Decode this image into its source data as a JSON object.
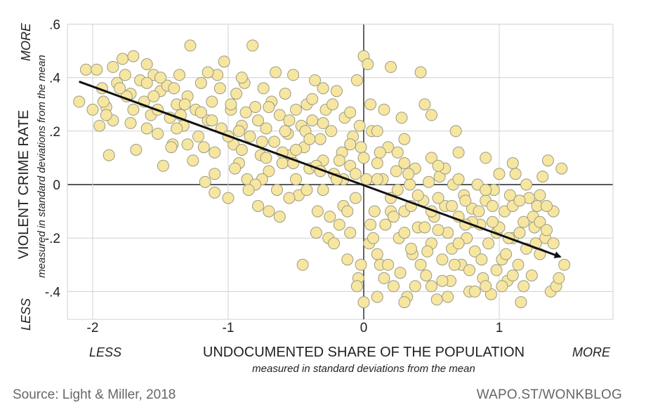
{
  "chart_data": {
    "type": "scatter",
    "x_axis": {
      "title": "UNDOCUMENTED SHARE OF THE POPULATION",
      "subtitle": "measured in standard deviations from the mean",
      "less_label": "LESS",
      "more_label": "MORE",
      "range": [
        -2.2,
        1.8
      ],
      "ticks": [
        {
          "value": -2,
          "label": "-2"
        },
        {
          "value": -1,
          "label": "-1"
        },
        {
          "value": 0,
          "label": "0"
        },
        {
          "value": 1,
          "label": "1"
        }
      ]
    },
    "y_axis": {
      "title": "VIOLENT CRIME RATE",
      "subtitle": "measured in standard deviations from the mean",
      "less_label": "LESS",
      "more_label": "MORE",
      "range": [
        -0.5,
        0.6
      ],
      "ticks": [
        {
          "value": 0.6,
          "label": ".6"
        },
        {
          "value": 0.4,
          "label": ".4"
        },
        {
          "value": 0.2,
          "label": ".2"
        },
        {
          "value": 0,
          "label": "0"
        },
        {
          "value": -0.2,
          "label": "-.2"
        },
        {
          "value": -0.4,
          "label": "-.4"
        }
      ]
    },
    "trend_line": {
      "x": [
        -2.1,
        1.45
      ],
      "y": [
        0.385,
        -0.27
      ]
    },
    "grid": true,
    "points": [
      [
        -2.1,
        0.31
      ],
      [
        -2.05,
        0.43
      ],
      [
        -1.97,
        0.43
      ],
      [
        -1.93,
        0.36
      ],
      [
        -1.9,
        0.29
      ],
      [
        -1.88,
        0.11
      ],
      [
        -1.95,
        0.22
      ],
      [
        -1.85,
        0.24
      ],
      [
        -1.82,
        0.38
      ],
      [
        -1.78,
        0.47
      ],
      [
        -1.76,
        0.41
      ],
      [
        -1.72,
        0.34
      ],
      [
        -1.7,
        0.28
      ],
      [
        -1.68,
        0.13
      ],
      [
        -1.65,
        0.39
      ],
      [
        -1.62,
        0.31
      ],
      [
        -1.6,
        0.45
      ],
      [
        -1.57,
        0.26
      ],
      [
        -1.55,
        0.41
      ],
      [
        -1.52,
        0.19
      ],
      [
        -1.5,
        0.35
      ],
      [
        -1.48,
        0.07
      ],
      [
        -1.45,
        0.37
      ],
      [
        -1.43,
        0.25
      ],
      [
        -1.41,
        0.15
      ],
      [
        -1.38,
        0.3
      ],
      [
        -1.36,
        0.41
      ],
      [
        -1.33,
        0.22
      ],
      [
        -1.3,
        0.33
      ],
      [
        -1.28,
        0.52
      ],
      [
        -1.26,
        0.09
      ],
      [
        -1.24,
        0.28
      ],
      [
        -1.22,
        0.18
      ],
      [
        -1.2,
        0.38
      ],
      [
        -1.17,
        0.01
      ],
      [
        -1.15,
        0.24
      ],
      [
        -1.12,
        0.31
      ],
      [
        -1.1,
        0.12
      ],
      [
        -1.08,
        0.41
      ],
      [
        -1.05,
        0.21
      ],
      [
        -1.03,
        0.46
      ],
      [
        -1.0,
        -0.05
      ],
      [
        -0.98,
        0.28
      ],
      [
        -0.96,
        0.15
      ],
      [
        -0.94,
        0.34
      ],
      [
        -0.92,
        0.08
      ],
      [
        -0.9,
        0.22
      ],
      [
        -0.88,
        0.38
      ],
      [
        -0.86,
        0.02
      ],
      [
        -0.84,
        0.18
      ],
      [
        -0.82,
        0.52
      ],
      [
        -0.8,
        0.29
      ],
      [
        -0.78,
        -0.08
      ],
      [
        -0.76,
        0.11
      ],
      [
        -0.74,
        0.36
      ],
      [
        -0.72,
        0.21
      ],
      [
        -0.7,
        0.05
      ],
      [
        -0.68,
        0.31
      ],
      [
        -0.66,
        0.16
      ],
      [
        -0.64,
        -0.02
      ],
      [
        -0.62,
        0.26
      ],
      [
        -0.6,
        0.08
      ],
      [
        -0.58,
        0.34
      ],
      [
        -0.56,
        0.19
      ],
      [
        -0.54,
        0.11
      ],
      [
        -0.52,
        0.41
      ],
      [
        -0.5,
        0.28
      ],
      [
        -0.48,
        -0.04
      ],
      [
        -0.46,
        0.22
      ],
      [
        -0.44,
        0.14
      ],
      [
        -0.42,
        0.3
      ],
      [
        -0.4,
        0.06
      ],
      [
        -0.38,
        0.24
      ],
      [
        -0.36,
        0.39
      ],
      [
        -0.34,
        -0.1
      ],
      [
        -0.32,
        0.17
      ],
      [
        -0.3,
        0.09
      ],
      [
        -0.28,
        0.28
      ],
      [
        -0.26,
        -0.2
      ],
      [
        -0.24,
        0.2
      ],
      [
        -0.22,
        0.04
      ],
      [
        -0.2,
        0.35
      ],
      [
        -0.18,
        -0.15
      ],
      [
        -0.16,
        0.12
      ],
      [
        -0.14,
        0.25
      ],
      [
        -0.12,
        -0.28
      ],
      [
        -0.1,
        0.07
      ],
      [
        -0.08,
        0.18
      ],
      [
        -0.06,
        -0.05
      ],
      [
        -0.04,
        -0.35
      ],
      [
        -0.02,
        0.14
      ],
      [
        0.0,
        0.48
      ],
      [
        0.0,
        -0.44
      ],
      [
        0.02,
        0.02
      ],
      [
        0.04,
        -0.22
      ],
      [
        0.06,
        0.2
      ],
      [
        0.08,
        -0.1
      ],
      [
        0.1,
        0.08
      ],
      [
        0.12,
        -0.3
      ],
      [
        0.14,
        0.02
      ],
      [
        0.16,
        -0.15
      ],
      [
        0.18,
        0.14
      ],
      [
        0.2,
        -0.05
      ],
      [
        0.22,
        -0.38
      ],
      [
        0.24,
        0.05
      ],
      [
        0.26,
        -0.2
      ],
      [
        0.28,
        0.25
      ],
      [
        0.3,
        -0.1
      ],
      [
        0.32,
        -0.42
      ],
      [
        0.34,
        0.0
      ],
      [
        0.36,
        -0.26
      ],
      [
        0.38,
        0.06
      ],
      [
        0.4,
        -0.16
      ],
      [
        0.42,
        0.42
      ],
      [
        0.44,
        -0.06
      ],
      [
        0.46,
        -0.34
      ],
      [
        0.48,
        0.01
      ],
      [
        0.5,
        -0.22
      ],
      [
        0.52,
        -0.12
      ],
      [
        0.54,
        -0.43
      ],
      [
        0.56,
        0.03
      ],
      [
        0.58,
        -0.28
      ],
      [
        0.6,
        -0.08
      ],
      [
        0.62,
        -0.18
      ],
      [
        0.64,
        -0.36
      ],
      [
        0.66,
        0.0
      ],
      [
        0.68,
        0.2
      ],
      [
        0.7,
        -0.12
      ],
      [
        0.72,
        -0.3
      ],
      [
        0.74,
        -0.04
      ],
      [
        0.76,
        -0.2
      ],
      [
        0.78,
        -0.4
      ],
      [
        0.8,
        -0.09
      ],
      [
        0.82,
        -0.25
      ],
      [
        0.84,
        0.0
      ],
      [
        0.86,
        -0.15
      ],
      [
        0.88,
        -0.35
      ],
      [
        0.9,
        -0.06
      ],
      [
        0.92,
        -0.22
      ],
      [
        0.94,
        -0.41
      ],
      [
        0.96,
        -0.02
      ],
      [
        0.98,
        -0.18
      ],
      [
        1.0,
        0.04
      ],
      [
        1.02,
        -0.28
      ],
      [
        1.04,
        -0.1
      ],
      [
        1.06,
        -0.36
      ],
      [
        1.08,
        -0.04
      ],
      [
        1.1,
        -0.2
      ],
      [
        1.12,
        0.04
      ],
      [
        1.14,
        -0.3
      ],
      [
        1.16,
        -0.44
      ],
      [
        1.18,
        -0.14
      ],
      [
        1.2,
        -0.24
      ],
      [
        1.22,
        -0.05
      ],
      [
        1.24,
        -0.34
      ],
      [
        1.26,
        -0.16
      ],
      [
        1.28,
        -0.08
      ],
      [
        1.3,
        -0.26
      ],
      [
        1.32,
        0.03
      ],
      [
        1.34,
        -0.2
      ],
      [
        1.36,
        0.09
      ],
      [
        1.38,
        -0.4
      ],
      [
        1.4,
        -0.1
      ],
      [
        1.42,
        -0.38
      ],
      [
        1.44,
        -0.35
      ],
      [
        1.46,
        0.06
      ],
      [
        1.48,
        -0.3
      ],
      [
        -0.75,
        0.02
      ],
      [
        -0.55,
        -0.05
      ],
      [
        -0.35,
        -0.18
      ],
      [
        -0.15,
        0.02
      ],
      [
        0.05,
        0.3
      ],
      [
        0.15,
        0.28
      ],
      [
        0.25,
        0.12
      ],
      [
        0.35,
        -0.08
      ],
      [
        0.45,
        0.3
      ],
      [
        0.55,
        -0.05
      ],
      [
        0.65,
        -0.08
      ],
      [
        -0.45,
        -0.3
      ],
      [
        -0.25,
        -0.12
      ],
      [
        -0.05,
        -0.38
      ],
      [
        0.1,
        -0.42
      ],
      [
        0.3,
        -0.44
      ],
      [
        -0.9,
        0.4
      ],
      [
        -1.15,
        0.42
      ],
      [
        -1.35,
        0.26
      ],
      [
        -1.55,
        0.33
      ],
      [
        -1.75,
        0.33
      ],
      [
        -1.9,
        0.26
      ],
      [
        -0.05,
        0.39
      ],
      [
        0.2,
        0.44
      ],
      [
        0.5,
        0.26
      ],
      [
        -1.6,
        0.21
      ],
      [
        -1.42,
        0.14
      ],
      [
        -1.06,
        0.36
      ],
      [
        -0.87,
        0.27
      ],
      [
        -0.65,
        0.42
      ],
      [
        -0.43,
        0.2
      ],
      [
        -0.23,
        0.3
      ],
      [
        -0.03,
        0.22
      ],
      [
        0.07,
        -0.2
      ],
      [
        0.27,
        -0.33
      ],
      [
        0.47,
        -0.25
      ],
      [
        0.67,
        -0.3
      ],
      [
        0.87,
        -0.28
      ],
      [
        1.07,
        -0.2
      ],
      [
        1.27,
        -0.22
      ],
      [
        -0.8,
        0.0
      ],
      [
        -0.6,
        0.12
      ],
      [
        -0.4,
        0.17
      ],
      [
        -0.2,
        0.02
      ],
      [
        0.0,
        0.1
      ],
      [
        0.2,
        -0.1
      ],
      [
        0.4,
        -0.04
      ],
      [
        0.6,
        0.06
      ],
      [
        0.8,
        -0.14
      ],
      [
        1.0,
        -0.16
      ],
      [
        1.2,
        0.0
      ],
      [
        -1.0,
        0.18
      ],
      [
        -1.2,
        0.27
      ],
      [
        -1.4,
        0.36
      ],
      [
        -1.6,
        0.38
      ],
      [
        -1.8,
        0.36
      ],
      [
        -0.95,
        0.06
      ],
      [
        -0.75,
        0.16
      ],
      [
        -0.55,
        0.24
      ],
      [
        -0.35,
        0.07
      ],
      [
        -0.15,
        -0.08
      ],
      [
        0.05,
        -0.15
      ],
      [
        0.25,
        -0.02
      ],
      [
        0.45,
        -0.16
      ],
      [
        0.65,
        -0.24
      ],
      [
        0.85,
        -0.1
      ],
      [
        1.05,
        -0.26
      ],
      [
        1.25,
        -0.12
      ],
      [
        1.4,
        -0.22
      ],
      [
        -0.3,
        0.23
      ],
      [
        -0.1,
        0.15
      ],
      [
        0.1,
        0.02
      ],
      [
        0.3,
        0.08
      ],
      [
        0.5,
        -0.1
      ],
      [
        0.7,
        0.02
      ],
      [
        0.9,
        -0.02
      ],
      [
        1.1,
        -0.08
      ],
      [
        1.3,
        -0.04
      ],
      [
        -0.7,
        -0.1
      ],
      [
        -0.5,
        0.02
      ],
      [
        -0.3,
        -0.02
      ],
      [
        -0.1,
        -0.18
      ],
      [
        0.1,
        -0.26
      ],
      [
        0.3,
        -0.18
      ],
      [
        0.5,
        -0.38
      ],
      [
        0.7,
        -0.22
      ],
      [
        0.9,
        -0.38
      ],
      [
        1.1,
        -0.34
      ],
      [
        -1.1,
        -0.03
      ],
      [
        -0.9,
        0.13
      ],
      [
        -0.7,
        0.29
      ],
      [
        -0.5,
        0.13
      ],
      [
        -0.3,
        0.36
      ],
      [
        -0.1,
        0.27
      ],
      [
        0.1,
        0.2
      ],
      [
        0.3,
        0.17
      ],
      [
        0.5,
        0.1
      ],
      [
        0.7,
        0.12
      ],
      [
        0.9,
        0.1
      ],
      [
        1.1,
        0.08
      ],
      [
        1.3,
        -0.14
      ],
      [
        -2.0,
        0.28
      ],
      [
        -1.85,
        0.44
      ],
      [
        -1.7,
        0.48
      ],
      [
        -1.5,
        0.4
      ],
      [
        -1.3,
        0.15
      ],
      [
        -1.1,
        0.04
      ],
      [
        -0.85,
        -0.02
      ],
      [
        -0.62,
        -0.12
      ],
      [
        -0.42,
        -0.02
      ],
      [
        -0.22,
        -0.22
      ],
      [
        -0.02,
        -0.3
      ],
      [
        0.18,
        -0.3
      ],
      [
        0.38,
        -0.38
      ],
      [
        0.58,
        -0.36
      ],
      [
        0.78,
        -0.32
      ],
      [
        0.98,
        -0.32
      ],
      [
        1.18,
        -0.38
      ],
      [
        0.03,
        0.45
      ],
      [
        -0.06,
        0.04
      ],
      [
        0.12,
        0.12
      ],
      [
        -0.18,
        0.09
      ],
      [
        0.33,
        0.04
      ],
      [
        -0.38,
        0.32
      ],
      [
        0.55,
        0.07
      ],
      [
        -0.58,
        0.2
      ],
      [
        0.75,
        -0.06
      ],
      [
        -0.78,
        0.24
      ],
      [
        0.95,
        -0.08
      ],
      [
        -0.98,
        0.3
      ],
      [
        1.15,
        -0.18
      ],
      [
        -1.18,
        0.14
      ],
      [
        1.35,
        -0.17
      ],
      [
        -1.38,
        0.21
      ],
      [
        0.42,
        -0.3
      ],
      [
        0.62,
        -0.42
      ],
      [
        0.82,
        -0.4
      ],
      [
        1.02,
        -0.38
      ],
      [
        0.22,
        -0.12
      ],
      [
        -0.12,
        -0.1
      ],
      [
        -0.32,
        0.05
      ],
      [
        -0.52,
        0.08
      ],
      [
        -0.72,
        0.1
      ],
      [
        -0.92,
        0.2
      ],
      [
        -1.12,
        0.24
      ],
      [
        -1.32,
        0.3
      ],
      [
        -1.52,
        0.28
      ],
      [
        -1.72,
        0.23
      ],
      [
        -1.92,
        0.31
      ],
      [
        0.15,
        -0.35
      ],
      [
        0.35,
        -0.24
      ],
      [
        0.55,
        -0.17
      ],
      [
        0.75,
        -0.15
      ],
      [
        0.95,
        -0.14
      ],
      [
        1.15,
        -0.06
      ],
      [
        1.35,
        -0.08
      ]
    ]
  },
  "footer": {
    "source": "Source: Light & Miller, 2018",
    "brand": "WAPO.ST/WONKBLOG"
  },
  "colors": {
    "dot_fill": "#f6e6a0",
    "dot_stroke": "#9a9a86",
    "grid": "#d0d0d0",
    "zero_line": "#222222",
    "trend": "#111111",
    "text": "#222222",
    "footer_text": "#666666"
  }
}
